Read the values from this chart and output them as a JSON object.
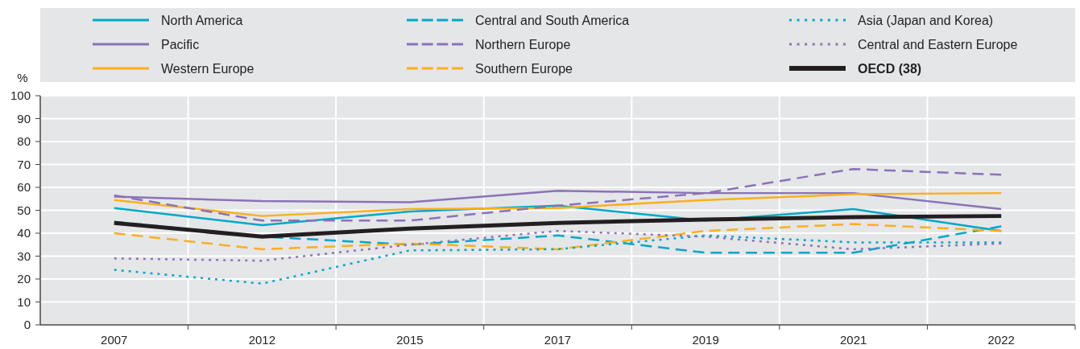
{
  "chart_data": {
    "type": "line",
    "ylabel": "%",
    "categories": [
      "2007",
      "2012",
      "2015",
      "2017",
      "2019",
      "2021",
      "2022"
    ],
    "ylim": [
      0,
      100
    ],
    "yticks": [
      0,
      10,
      20,
      30,
      40,
      50,
      60,
      70,
      80,
      90,
      100
    ],
    "grid": true,
    "legend": "top",
    "marker": "none",
    "series": [
      {
        "name": "North America",
        "color": "#00a8c8",
        "line_style": "solid",
        "values": [
          51,
          43.5,
          49.5,
          52,
          45.5,
          50.5,
          41
        ]
      },
      {
        "name": "Pacific",
        "color": "#8b72b8",
        "line_style": "solid",
        "values": [
          56,
          54,
          53.5,
          58.5,
          57.5,
          57.5,
          50.5
        ]
      },
      {
        "name": "Western Europe",
        "color": "#fbb01b",
        "line_style": "solid",
        "values": [
          54.5,
          47.5,
          50.5,
          51,
          54.5,
          57,
          57.5
        ]
      },
      {
        "name": "Central and South America",
        "color": "#00a8c8",
        "line_style": "dashed",
        "values": [
          45,
          38.5,
          35,
          39,
          31.5,
          31.5,
          43
        ]
      },
      {
        "name": "Northern Europe",
        "color": "#8b72b8",
        "line_style": "dashed",
        "values": [
          56.5,
          45.5,
          45.5,
          52,
          57.5,
          68,
          65.5
        ]
      },
      {
        "name": "Southern Europe",
        "color": "#fbb01b",
        "line_style": "dashed",
        "values": [
          40,
          33,
          35.5,
          33,
          41,
          44,
          41
        ]
      },
      {
        "name": "Asia (Japan and Korea)",
        "color": "#00a8c8",
        "line_style": "dotted",
        "values": [
          24,
          18,
          32.5,
          33,
          39,
          36,
          36
        ]
      },
      {
        "name": "Central and Eastern Europe",
        "color": "#8b72b8",
        "line_style": "dotted",
        "values": [
          29,
          28,
          35,
          41,
          38.5,
          33,
          35.5
        ]
      },
      {
        "name": "OECD (38)",
        "color": "#231f20",
        "line_style": "solid",
        "values": [
          44.5,
          38.5,
          42,
          44.5,
          46,
          47,
          47.5
        ]
      }
    ]
  }
}
